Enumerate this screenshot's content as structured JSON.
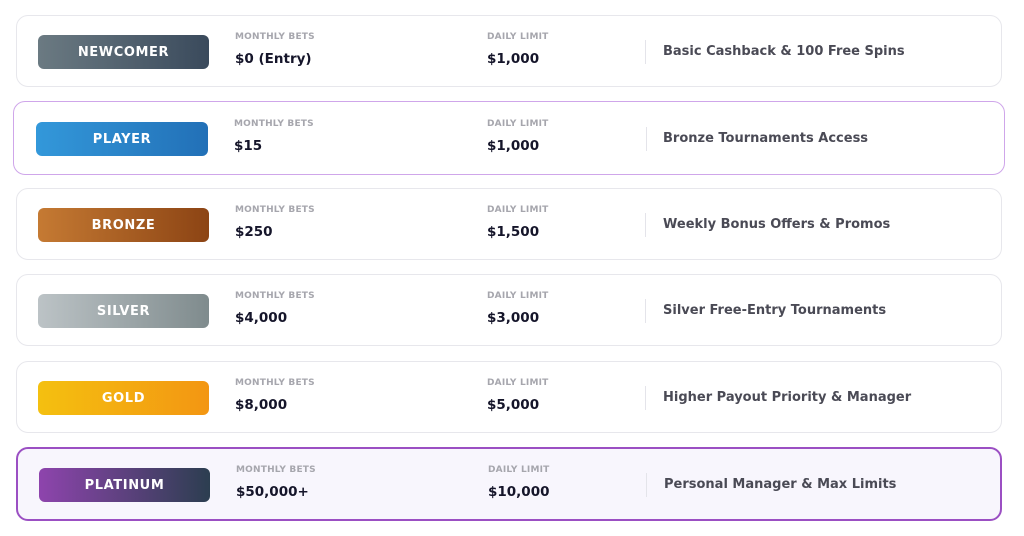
{
  "column_labels": {
    "monthly_bets": "MONTHLY BETS",
    "daily_limit": "DAILY LIMIT"
  },
  "tiers": [
    {
      "name": "NEWCOMER",
      "monthly_bets": "$0 (Entry)",
      "daily_limit": "$1,000",
      "perk": "Basic Cashback & 100 Free Spins",
      "badge_colors": [
        "#6b7a82",
        "#3a4a5c"
      ]
    },
    {
      "name": "PLAYER",
      "monthly_bets": "$15",
      "daily_limit": "$1,000",
      "perk": "Bronze Tournaments Access",
      "badge_colors": [
        "#3398da",
        "#2270b7"
      ],
      "highlighted": true
    },
    {
      "name": "BRONZE",
      "monthly_bets": "$250",
      "daily_limit": "$1,500",
      "perk": "Weekly Bonus Offers & Promos",
      "badge_colors": [
        "#c57a33",
        "#8c4414"
      ]
    },
    {
      "name": "SILVER",
      "monthly_bets": "$4,000",
      "daily_limit": "$3,000",
      "perk": "Silver Free-Entry Tournaments",
      "badge_colors": [
        "#bcc3c6",
        "#7f8b8d"
      ]
    },
    {
      "name": "GOLD",
      "monthly_bets": "$8,000",
      "daily_limit": "$5,000",
      "perk": "Higher Payout Priority & Manager",
      "badge_colors": [
        "#f4c010",
        "#f39612"
      ]
    },
    {
      "name": "PLATINUM",
      "monthly_bets": "$50,000+",
      "daily_limit": "$10,000",
      "perk": "Personal Manager & Max Limits",
      "badge_colors": [
        "#8e44ad",
        "#2c3e50"
      ],
      "current": true
    }
  ]
}
